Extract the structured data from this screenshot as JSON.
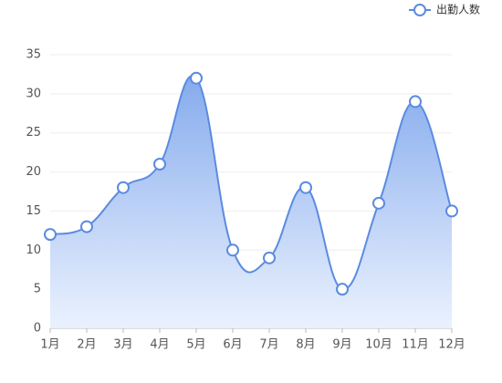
{
  "chart_data": {
    "type": "line",
    "categories": [
      "1月",
      "2月",
      "3月",
      "4月",
      "5月",
      "6月",
      "7月",
      "8月",
      "9月",
      "10月",
      "11月",
      "12月"
    ],
    "series": [
      {
        "name": "出勤人数",
        "color": "#5b8be0",
        "values": [
          12,
          13,
          18,
          21,
          32,
          10,
          9,
          18,
          5,
          16,
          29,
          15
        ]
      }
    ],
    "ylim": [
      0,
      35
    ],
    "yticks": [
      0,
      5,
      10,
      15,
      20,
      25,
      30,
      35
    ],
    "grid": true,
    "area": true,
    "smooth": true,
    "legend": "top-right"
  }
}
